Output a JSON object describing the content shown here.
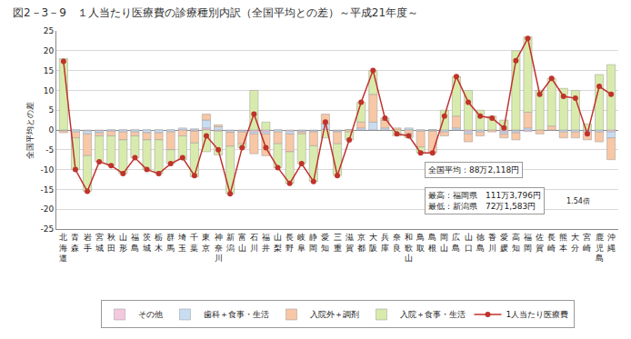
{
  "chart_data": {
    "type": "bar",
    "title": "図2－3－9　１人当たり医療費の診療種別内訳（全国平均との差）～平成21年度～",
    "y_label": "全国平均との差",
    "categories": [
      "北海道",
      "青森",
      "岩手",
      "宮城",
      "秋田",
      "山形",
      "福島",
      "茨城",
      "栃木",
      "群馬",
      "埼玉",
      "千葉",
      "東京",
      "神奈川",
      "新潟",
      "富山",
      "石川",
      "福井",
      "山梨",
      "長野",
      "岐阜",
      "静岡",
      "愛知",
      "三重",
      "滋賀",
      "京都",
      "大阪",
      "兵庫",
      "奈良",
      "和歌山",
      "鳥取",
      "島根",
      "岡山",
      "広島",
      "山口",
      "徳島",
      "香川",
      "愛媛",
      "高知",
      "福岡",
      "佐賀",
      "長崎",
      "熊本",
      "大分",
      "宮崎",
      "鹿児島",
      "沖縄"
    ],
    "stacked": true,
    "grid": true,
    "legend": "bottom",
    "ylim": [
      -25,
      25
    ],
    "yticks": [
      -25,
      -20,
      -15,
      -10,
      -5,
      0,
      5,
      10,
      15,
      20,
      25
    ],
    "series": [
      {
        "name": "その他",
        "type": "bar",
        "color": "#f4c8df",
        "values": [
          0,
          0,
          -0.2,
          -0.2,
          0,
          0,
          0,
          0,
          0,
          0,
          0,
          -0.3,
          0.5,
          -0.3,
          -0.2,
          -0.2,
          -0.5,
          -0.5,
          0,
          -0.3,
          -0.2,
          -0.2,
          0,
          -0.2,
          0,
          0,
          0,
          0,
          0,
          0,
          0,
          0,
          0,
          0,
          -0.5,
          0,
          0,
          -0.5,
          -0.2,
          -0.4,
          0,
          0,
          0,
          0,
          0,
          0,
          -0.5
        ]
      },
      {
        "name": "歯科＋食事・生活",
        "type": "bar",
        "color": "#c8dcf2",
        "values": [
          -0.2,
          -0.5,
          -0.8,
          -0.5,
          -0.3,
          -0.5,
          -0.5,
          -0.7,
          -0.7,
          -0.5,
          0.5,
          0.3,
          2,
          0.8,
          -0.4,
          -0.3,
          -0.5,
          -0.5,
          -0.5,
          -0.7,
          -0.3,
          -0.3,
          1.5,
          -0.3,
          0,
          0.5,
          2,
          0.5,
          0,
          0.5,
          -0.3,
          -0.3,
          -0.5,
          0.5,
          -0.5,
          -0.5,
          0,
          -0.5,
          -0.5,
          0.5,
          0,
          0,
          -0.5,
          -0.5,
          -0.5,
          -0.5,
          -1.5
        ]
      },
      {
        "name": "入院外＋調剤",
        "type": "bar",
        "color": "#f7c7a6",
        "values": [
          -0.5,
          -1.5,
          -5.5,
          -0.8,
          -1.2,
          -2,
          -1,
          -1.8,
          -1.8,
          -4.5,
          -1.5,
          -3,
          1.5,
          0.5,
          -3.5,
          -3,
          -5,
          -5.5,
          -3,
          -4.5,
          -0.5,
          -3.5,
          2.5,
          -3,
          -0.5,
          1.5,
          7,
          2,
          0.5,
          -1,
          -4,
          -5.5,
          -1,
          3,
          -2,
          -1,
          -0.5,
          -1,
          -1.8,
          4,
          -1,
          1,
          -1.5,
          -1.5,
          -2,
          -2.5,
          -5.5
        ]
      },
      {
        "name": "入院＋食事・生活",
        "type": "bar",
        "color": "#d8ebad",
        "values": [
          18,
          -8,
          -9,
          -6.5,
          -7.5,
          -8.5,
          -5.5,
          -7.5,
          -8.5,
          -3.5,
          -6,
          -8.5,
          -5.5,
          -6,
          -12,
          -1,
          10,
          2,
          -6,
          -8,
          -7.5,
          -9,
          -2,
          -8,
          -2,
          5,
          6,
          0.5,
          -1.5,
          -1,
          -1.5,
          0,
          5,
          10,
          10,
          5,
          3.5,
          2.5,
          20,
          19,
          10,
          12,
          10.5,
          10,
          1.5,
          14,
          16.5
        ]
      },
      {
        "name": "1人当たり医療費",
        "type": "line",
        "color": "#c0322b",
        "marker": "circle",
        "values": [
          17.3,
          -10,
          -15.5,
          -8,
          -9,
          -11,
          -7,
          -10,
          -11,
          -8.5,
          -7,
          -11.5,
          -1.5,
          -5,
          -16.1,
          -4.5,
          4,
          -4.5,
          -9.5,
          -13.5,
          -8.5,
          -13,
          2,
          -11.5,
          -2.5,
          7,
          15,
          3,
          -1,
          -1.5,
          -5.8,
          -5.8,
          3.5,
          13.5,
          7,
          3.5,
          3,
          0.5,
          17.5,
          23.1,
          9,
          13,
          8.5,
          8,
          -1,
          11,
          9
        ]
      }
    ],
    "annotations": [
      "全国平均：88万2,118円",
      "最高：福岡県　111万3,796円",
      "最低：新潟県　72万1,583円",
      "1.54倍"
    ]
  }
}
